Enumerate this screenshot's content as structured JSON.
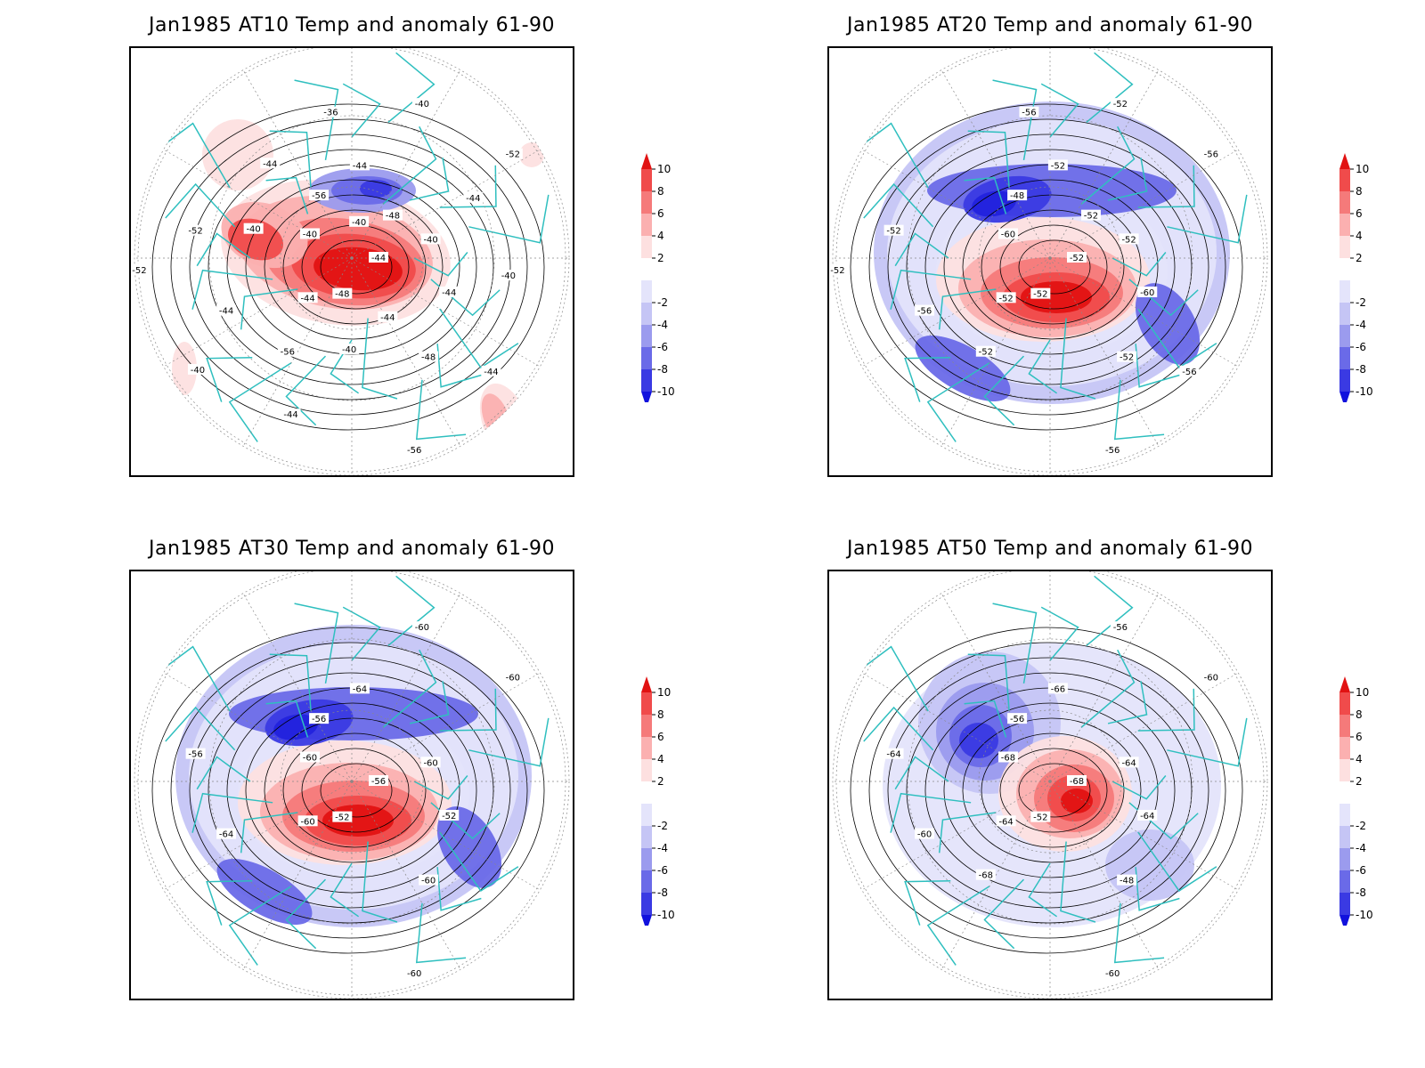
{
  "panels": [
    {
      "title": "Jan1985 AT10 Temp and anomaly 61-90",
      "contour_labels": [
        "-44",
        "-44",
        "-44",
        "-48",
        "-52",
        "-52",
        "-48",
        "-56",
        "-44",
        "-44",
        "-40",
        "-56",
        "-40",
        "-40",
        "-56",
        "-36",
        "-44",
        "-52",
        "-48",
        "-40",
        "-44",
        "-40",
        "-40",
        "-40",
        "-44",
        "-40",
        "-44",
        "-44"
      ],
      "anomaly_pattern": "warm-dominant"
    },
    {
      "title": "Jan1985 AT20 Temp and anomaly 61-90",
      "contour_labels": [
        "-52",
        "-52",
        "-52",
        "-52",
        "-52",
        "-56",
        "-52",
        "-48",
        "-60",
        "-56",
        "-52",
        "-56",
        "-60",
        "-52",
        "-52",
        "-56",
        "-56",
        "-52",
        "-52"
      ],
      "anomaly_pattern": "cold-ring"
    },
    {
      "title": "Jan1985 AT30 Temp and anomaly 61-90",
      "contour_labels": [
        "-56",
        "-60",
        "-64",
        "-60",
        "-56",
        "-60",
        "-52",
        "-56",
        "-52",
        "-64",
        "-60",
        "-60",
        "-60",
        "-60"
      ],
      "anomaly_pattern": "cold-ring"
    },
    {
      "title": "Jan1985 AT50 Temp and anomaly 61-90",
      "contour_labels": [
        "-68",
        "-64",
        "-66",
        "-48",
        "-64",
        "-60",
        "-52",
        "-56",
        "-64",
        "-60",
        "-56",
        "-60",
        "-68",
        "-64",
        "-68"
      ],
      "anomaly_pattern": "cold-west"
    }
  ],
  "colorbar": {
    "ticks": [
      "10",
      "8",
      "6",
      "4",
      "2",
      "-2",
      "-4",
      "-6",
      "-8",
      "-10"
    ],
    "colors": [
      "#e11212",
      "#f04b4b",
      "#f57a7a",
      "#fbb0b0",
      "#fde0e0",
      "#ffffff",
      "#e4e4fb",
      "#c5c5f5",
      "#9b9bee",
      "#6a6ae8",
      "#3a3ae3",
      "#1111dd"
    ]
  },
  "colors": {
    "coastline": "#2fbfbf",
    "contour": "#000000",
    "graticule": "#888888"
  }
}
